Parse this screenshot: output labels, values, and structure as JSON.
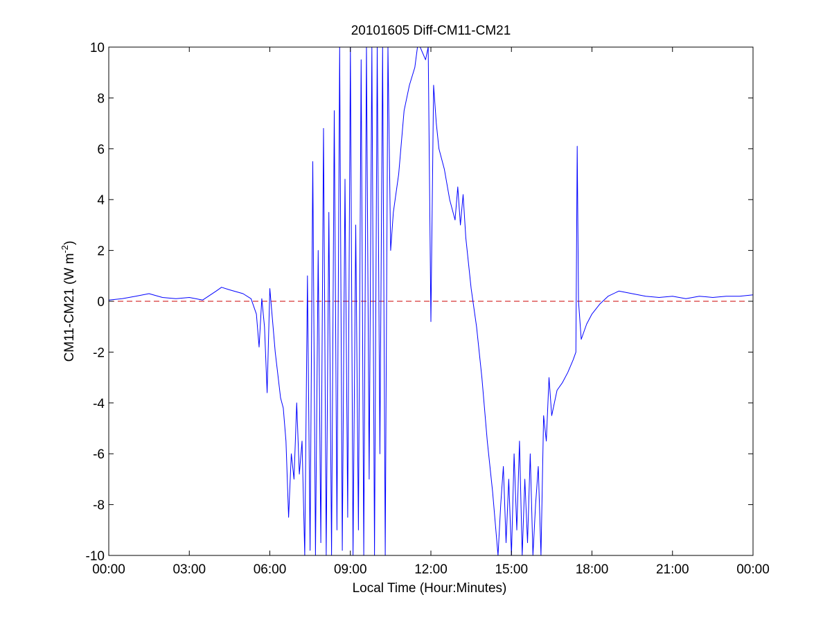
{
  "chart_data": {
    "type": "line",
    "title": "20101605 Diff-CM11-CM21",
    "xlabel": "Local Time (Hour:Minutes)",
    "ylabel": "CM11-CM21 (W m",
    "ylabel_superscript": "-2",
    "ylabel_suffix": ")",
    "xlim": [
      0,
      24
    ],
    "ylim": [
      -10,
      10
    ],
    "x_ticks": [
      0,
      3,
      6,
      9,
      12,
      15,
      18,
      21,
      24
    ],
    "x_tick_labels": [
      "00:00",
      "03:00",
      "06:00",
      "09:00",
      "12:00",
      "15:00",
      "18:00",
      "21:00",
      "00:00"
    ],
    "y_ticks": [
      -10,
      -8,
      -6,
      -4,
      -2,
      0,
      2,
      4,
      6,
      8,
      10
    ],
    "y_tick_labels": [
      "-10",
      "-8",
      "-6",
      "-4",
      "-2",
      "0",
      "2",
      "4",
      "6",
      "8",
      "10"
    ],
    "grid": false,
    "reference_line": {
      "y": 0,
      "style": "dashed",
      "color": "#cc0000"
    },
    "series": [
      {
        "color": "#0000ff",
        "x": [
          0,
          0.5,
          1,
          1.5,
          2,
          2.5,
          3,
          3.5,
          4,
          4.2,
          4.5,
          5,
          5.3,
          5.5,
          5.6,
          5.7,
          5.8,
          5.9,
          6.0,
          6.2,
          6.4,
          6.5,
          6.6,
          6.7,
          6.8,
          6.9,
          7.0,
          7.1,
          7.2,
          7.3,
          7.4,
          7.5,
          7.6,
          7.7,
          7.8,
          7.9,
          8.0,
          8.1,
          8.2,
          8.3,
          8.4,
          8.5,
          8.6,
          8.7,
          8.8,
          8.9,
          9.0,
          9.1,
          9.2,
          9.3,
          9.4,
          9.5,
          9.6,
          9.7,
          9.8,
          9.9,
          10.0,
          10.1,
          10.2,
          10.3,
          10.4,
          10.5,
          10.6,
          10.8,
          11.0,
          11.2,
          11.4,
          11.5,
          11.6,
          11.8,
          11.9,
          12.0,
          12.1,
          12.2,
          12.3,
          12.5,
          12.7,
          12.9,
          13.0,
          13.1,
          13.2,
          13.3,
          13.5,
          13.7,
          13.9,
          14.1,
          14.3,
          14.5,
          14.6,
          14.7,
          14.8,
          14.9,
          15.0,
          15.1,
          15.2,
          15.3,
          15.4,
          15.5,
          15.6,
          15.7,
          15.8,
          15.9,
          16.0,
          16.1,
          16.2,
          16.3,
          16.4,
          16.5,
          16.7,
          16.9,
          17.1,
          17.3,
          17.4,
          17.45,
          17.5,
          17.6,
          17.8,
          18.0,
          18.3,
          18.6,
          19.0,
          19.5,
          20,
          20.5,
          21,
          21.5,
          22,
          22.5,
          23,
          23.5,
          24
        ],
        "y": [
          0.05,
          0.1,
          0.2,
          0.3,
          0.15,
          0.1,
          0.15,
          0.05,
          0.4,
          0.55,
          0.45,
          0.3,
          0.1,
          -0.5,
          -1.8,
          0.1,
          -1.0,
          -3.6,
          0.5,
          -2.0,
          -3.8,
          -4.2,
          -5.5,
          -8.5,
          -6.0,
          -7.0,
          -4.0,
          -6.8,
          -5.5,
          -10,
          1.0,
          -9.8,
          5.5,
          -10,
          2.0,
          -9.5,
          6.8,
          -10,
          3.5,
          -10,
          7.5,
          -9.0,
          10,
          -9.8,
          4.8,
          -8.5,
          10,
          -10,
          3.0,
          -9.0,
          9.5,
          -10,
          10,
          -7.0,
          10,
          -10,
          10,
          -6.0,
          10,
          -10,
          10,
          2.0,
          3.5,
          5.0,
          7.5,
          8.5,
          9.2,
          10,
          10,
          9.5,
          10,
          -0.8,
          8.5,
          7.0,
          6.0,
          5.2,
          4.0,
          3.2,
          4.5,
          3.0,
          4.2,
          2.5,
          0.5,
          -1.0,
          -3.0,
          -5.5,
          -7.5,
          -10,
          -8.0,
          -6.5,
          -9.5,
          -7.0,
          -10,
          -6.0,
          -9.0,
          -5.5,
          -10,
          -7.0,
          -9.5,
          -6.0,
          -10,
          -8.0,
          -6.5,
          -10,
          -4.5,
          -5.5,
          -3.0,
          -4.5,
          -3.5,
          -3.2,
          -2.8,
          -2.3,
          -2.0,
          6.1,
          0.0,
          -1.5,
          -0.9,
          -0.5,
          -0.1,
          0.2,
          0.4,
          0.3,
          0.2,
          0.15,
          0.2,
          0.1,
          0.2,
          0.15,
          0.2,
          0.2,
          0.25
        ]
      }
    ]
  }
}
